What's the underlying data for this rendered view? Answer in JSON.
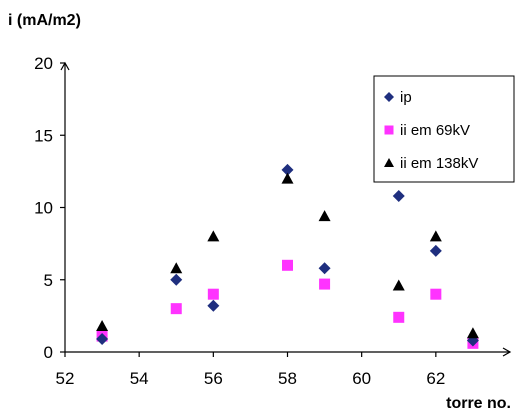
{
  "chart_data": {
    "type": "scatter",
    "title": "",
    "ylabel": "i (mA/m2)",
    "xlabel": "torre no.",
    "xlim": [
      52,
      64
    ],
    "ylim": [
      0,
      20
    ],
    "xticks": [
      52,
      54,
      56,
      58,
      60,
      62
    ],
    "yticks": [
      0,
      5,
      10,
      15,
      20
    ],
    "legend": "top-right",
    "grid": false,
    "series": [
      {
        "name": "ip",
        "marker": "diamond",
        "color": "#1f2f7f",
        "points": [
          [
            53,
            0.9
          ],
          [
            55,
            5.0
          ],
          [
            56,
            3.2
          ],
          [
            58,
            12.6
          ],
          [
            59,
            5.8
          ],
          [
            61,
            10.8
          ],
          [
            62,
            7.0
          ],
          [
            63,
            0.8
          ]
        ]
      },
      {
        "name": "ii em 69kV",
        "marker": "square",
        "color": "#ff33ff",
        "points": [
          [
            53,
            1.1
          ],
          [
            55,
            3.0
          ],
          [
            56,
            4.0
          ],
          [
            58,
            6.0
          ],
          [
            59,
            4.7
          ],
          [
            61,
            2.4
          ],
          [
            62,
            4.0
          ],
          [
            63,
            0.6
          ]
        ]
      },
      {
        "name": "ii em 138kV",
        "marker": "triangle",
        "color": "#000000",
        "points": [
          [
            53,
            1.8
          ],
          [
            55,
            5.8
          ],
          [
            56,
            8.0
          ],
          [
            58,
            12.0
          ],
          [
            59,
            9.4
          ],
          [
            61,
            4.6
          ],
          [
            62,
            8.0
          ],
          [
            63,
            1.3
          ]
        ]
      }
    ]
  }
}
